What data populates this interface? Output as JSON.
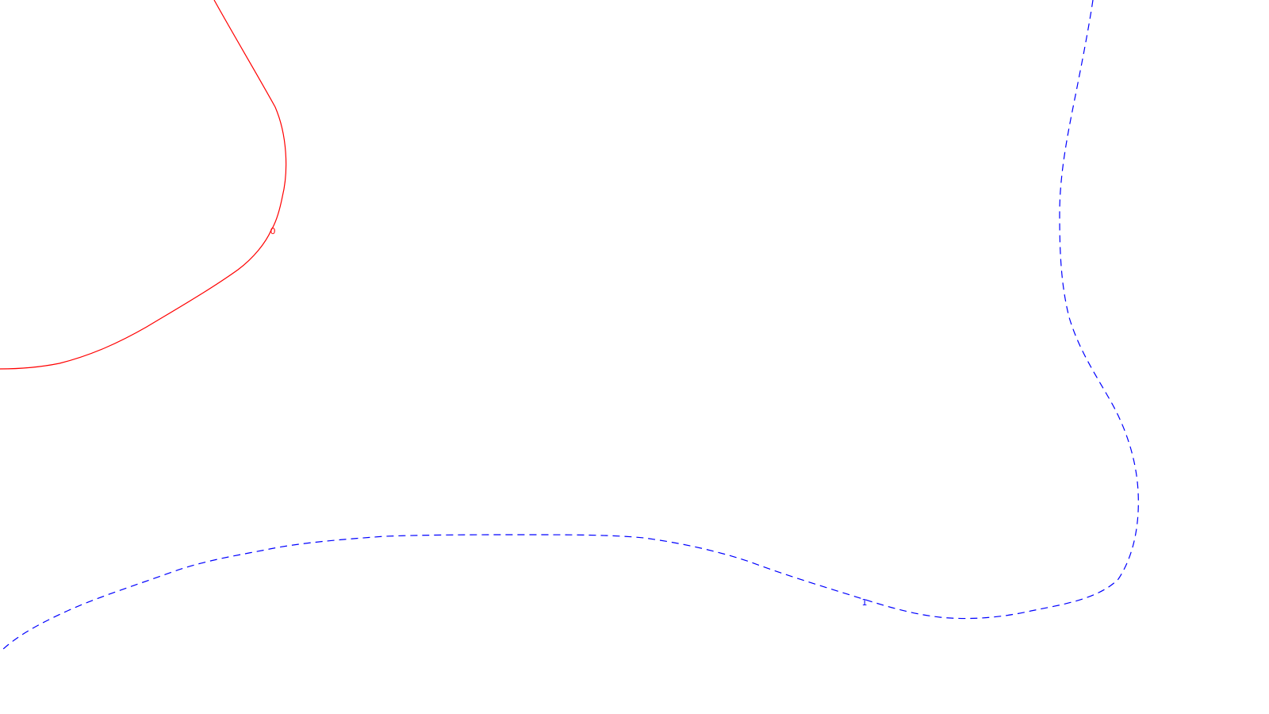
{
  "chart_data": {
    "type": "contour",
    "title": "",
    "xlabel": "",
    "ylabel": "",
    "grid": false,
    "legend": "none",
    "series": [
      {
        "level_label": "0",
        "color": "#ff0000",
        "line_style": "solid"
      },
      {
        "level_label": "1",
        "color": "#0000ff",
        "line_style": "dashed"
      }
    ]
  }
}
